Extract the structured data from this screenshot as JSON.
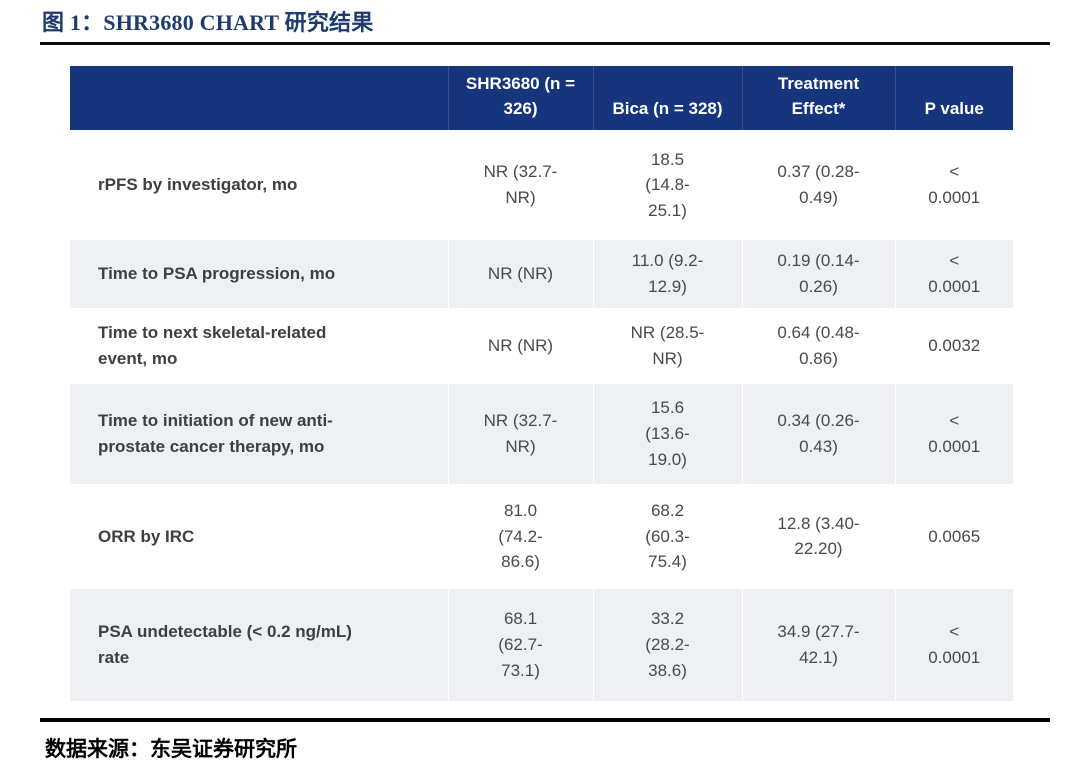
{
  "figure": {
    "title": "图 1：SHR3680 CHART 研究结果"
  },
  "table": {
    "headers": [
      "",
      "SHR3680 (n =\n326)",
      "Bica (n = 328)",
      "Treatment\nEffect*",
      "P value"
    ],
    "rows": [
      [
        "rPFS by investigator, mo",
        "NR (32.7-\nNR)",
        "18.5\n(14.8-\n25.1)",
        "0.37 (0.28-\n0.49)",
        "<\n0.0001"
      ],
      [
        "Time to PSA progression, mo",
        "NR (NR)",
        "11.0 (9.2-\n12.9)",
        "0.19 (0.14-\n0.26)",
        "<\n0.0001"
      ],
      [
        "Time to next skeletal-related\nevent, mo",
        "NR (NR)",
        "NR (28.5-\nNR)",
        "0.64 (0.48-\n0.86)",
        "0.0032"
      ],
      [
        "Time to initiation of new anti-\nprostate cancer therapy, mo",
        "NR (32.7-\nNR)",
        "15.6\n(13.6-\n19.0)",
        "0.34 (0.26-\n0.43)",
        "<\n0.0001"
      ],
      [
        "ORR by IRC",
        "81.0\n(74.2-\n86.6)",
        "68.2\n(60.3-\n75.4)",
        "12.8 (3.40-\n22.20)",
        "0.0065"
      ],
      [
        "PSA undetectable (< 0.2 ng/mL)\nrate",
        "68.1\n(62.7-\n73.1)",
        "33.2\n(28.2-\n38.6)",
        "34.9 (27.7-\n42.1)",
        "<\n0.0001"
      ]
    ]
  },
  "footer": {
    "source": "数据来源：东吴证券研究所"
  },
  "colors": {
    "header_bg": "#16357c",
    "alt_row_bg": "#eef0f4",
    "title_navy": "#1e3a6e",
    "body_text": "#3c4043"
  }
}
